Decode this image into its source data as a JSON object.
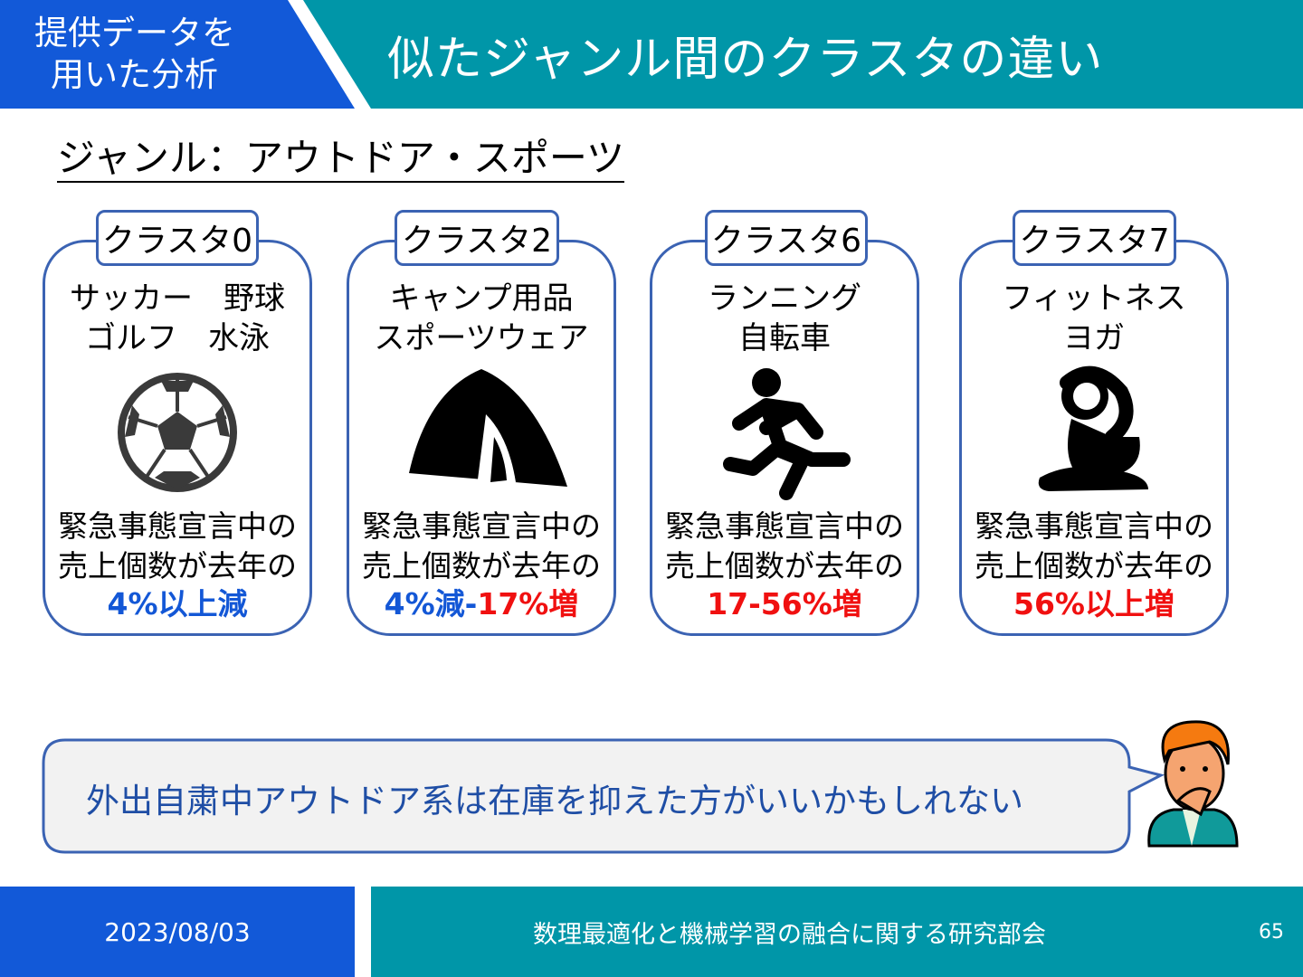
{
  "header": {
    "section_line1": "提供データを",
    "section_line2": "用いた分析",
    "title": "似たジャンル間のクラスタの違い",
    "colors": {
      "section_bg": "#1259d8",
      "title_bg": "#0096a8"
    }
  },
  "genre_label": "ジャンル：アウトドア・スポーツ",
  "clusters": [
    {
      "tag": "クラスタ0",
      "names": "サッカー　野球\nゴルフ　水泳",
      "icon": "soccer-ball-icon",
      "desc1": "緊急事態宣言中の",
      "desc2": "売上個数が去年の",
      "result_blue": "4%以上減",
      "result_red": ""
    },
    {
      "tag": "クラスタ2",
      "names": "キャンプ用品\nスポーツウェア",
      "icon": "tent-icon",
      "desc1": "緊急事態宣言中の",
      "desc2": "売上個数が去年の",
      "result_blue": "4%減-",
      "result_red": "17%増"
    },
    {
      "tag": "クラスタ6",
      "names": "ランニング\n自転車",
      "icon": "runner-icon",
      "desc1": "緊急事態宣言中の",
      "desc2": "売上個数が去年の",
      "result_blue": "",
      "result_red": "17-56%増"
    },
    {
      "tag": "クラスタ7",
      "names": "フィットネス\nヨガ",
      "icon": "yoga-icon",
      "desc1": "緊急事態宣言中の",
      "desc2": "売上個数が去年の",
      "result_blue": "",
      "result_red": "56%以上増"
    }
  ],
  "bubble": {
    "text": "外出自粛中アウトドア系は在庫を抑えた方がいいかもしれない",
    "icon": "thinking-man-icon"
  },
  "footer": {
    "date": "2023/08/03",
    "title": "数理最適化と機械学習の融合に関する研究部会",
    "page": "65"
  }
}
